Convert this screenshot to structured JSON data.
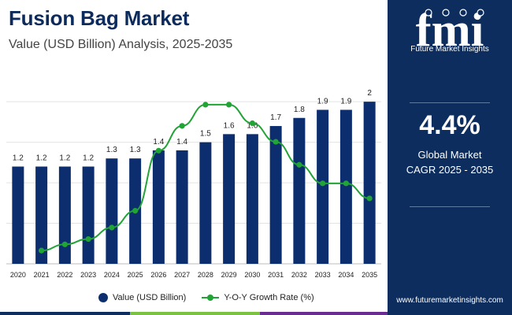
{
  "header": {
    "title": "Fusion Bag Market",
    "subtitle": "Value (USD Billion) Analysis, 2025-2035"
  },
  "sidebar": {
    "logo_text": "fmi",
    "logo_tagline": "Future Market Insights",
    "cagr_value": "4.4%",
    "cagr_label_line1": "Global Market",
    "cagr_label_line2": "CAGR 2025 - 2035",
    "website": "www.futuremarketinsights.com"
  },
  "legend": {
    "bar_label": "Value (USD Billion)",
    "line_label": "Y-O-Y Growth Rate (%)"
  },
  "colors": {
    "bar": "#0c2d6e",
    "line": "#21a336",
    "sidebar": "#0c2d5e",
    "strip": [
      "#0c2d5e",
      "#7cc242",
      "#6a2c91",
      "#0c2d5e"
    ]
  },
  "chart_data": {
    "type": "bar",
    "title": "Fusion Bag Market",
    "subtitle": "Value (USD Billion) Analysis, 2025-2035",
    "categories": [
      "2020",
      "2021",
      "2022",
      "2023",
      "2024",
      "2025",
      "2026",
      "2027",
      "2028",
      "2029",
      "2030",
      "2031",
      "2032",
      "2033",
      "2034",
      "2035"
    ],
    "series": [
      {
        "name": "Value (USD Billion)",
        "type": "bar",
        "axis": "left",
        "values": [
          1.2,
          1.2,
          1.2,
          1.2,
          1.3,
          1.3,
          1.4,
          1.4,
          1.5,
          1.6,
          1.6,
          1.7,
          1.8,
          1.9,
          1.9,
          2.0
        ],
        "labels": [
          "1.2",
          "1.2",
          "1.2",
          "1.2",
          "1.3",
          "1.3",
          "1.4",
          "1.4",
          "1.5",
          "1.6",
          "1.6",
          "1.7",
          "1.8",
          "1.9",
          "1.9",
          "2"
        ]
      },
      {
        "name": "Y-O-Y Growth Rate (%)",
        "type": "line",
        "axis": "right",
        "values": [
          null,
          0.5,
          1.2,
          1.8,
          3.1,
          5.0,
          11.8,
          14.6,
          17.0,
          17.0,
          14.9,
          12.8,
          10.2,
          8.1,
          8.1,
          6.4
        ]
      }
    ],
    "ylim": [
      0,
      2.4
    ],
    "y2lim": [
      -1.0,
      21.0
    ],
    "grid": true,
    "legend_position": "bottom"
  }
}
